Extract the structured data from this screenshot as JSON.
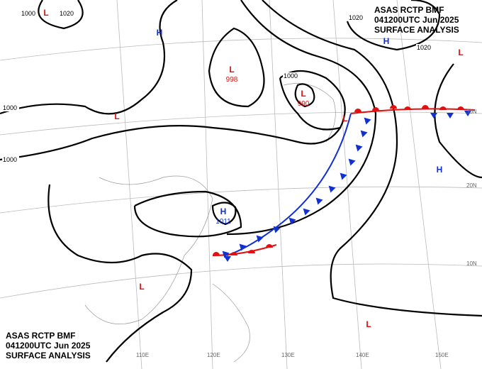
{
  "header_top": {
    "lines": [
      "ASAS     RCTP     BMF",
      "041200UTC     Jun     2025",
      "SURFACE  ANALYSIS"
    ]
  },
  "header_bottom": {
    "lines": [
      "ASAS     RCTP     BMF",
      "041200UTC     Jun     2025",
      "SURFACE  ANALYSIS"
    ]
  },
  "centers": [
    {
      "label": "L",
      "color": "#e01010"
    },
    {
      "label": "H",
      "color": "#1030d0"
    },
    {
      "label": "L",
      "color": "#e01010",
      "pressure": 998
    },
    {
      "label": "L",
      "color": "#e01010",
      "pressure": 990
    },
    {
      "label": "L",
      "color": "#e01010"
    },
    {
      "label": "H",
      "color": "#1030d0"
    },
    {
      "label": "L",
      "color": "#e01010"
    },
    {
      "label": "H",
      "color": "#1030d0"
    },
    {
      "label": "H",
      "color": "#1030d0",
      "pressure": 1011
    },
    {
      "label": "L",
      "color": "#e01010"
    },
    {
      "label": "L",
      "color": "#e01010"
    },
    {
      "label": "L",
      "color": "#e01010"
    }
  ],
  "isobar_labels": [
    "1000",
    "1000",
    "1000",
    "1020",
    "1020",
    "1000",
    "1020"
  ],
  "grid_labels": [
    "110E",
    "120E",
    "130E",
    "140E",
    "150E",
    "30N",
    "20N",
    "10N"
  ]
}
